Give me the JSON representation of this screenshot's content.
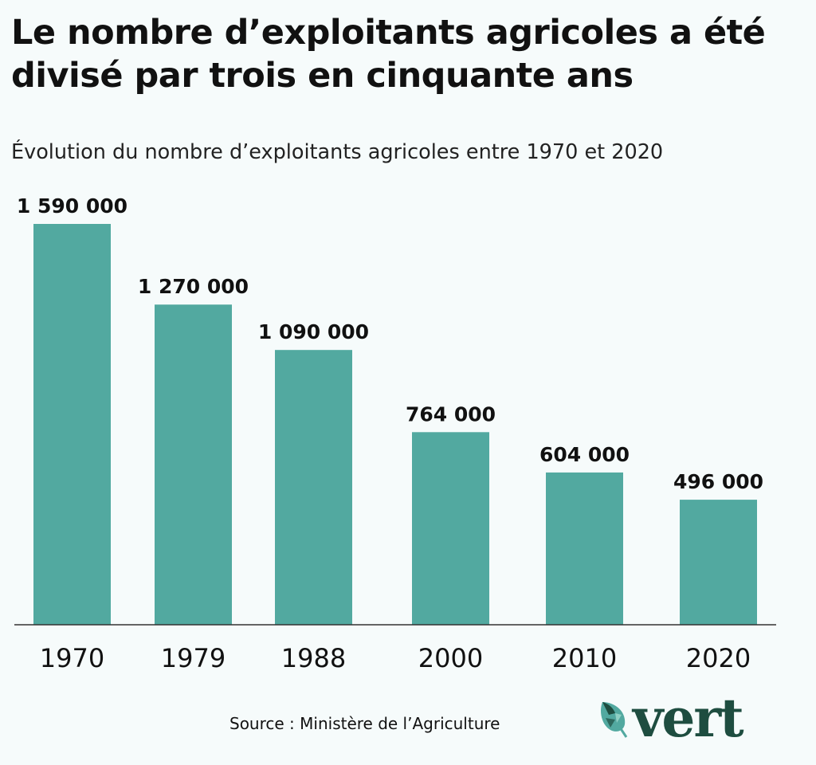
{
  "title": "Le nombre d’exploitants agricoles a été divisé par trois en cinquante ans",
  "subtitle": "Évolution du nombre d’exploitants agricoles entre 1970 et 2020",
  "source": "Source : Ministère de l’Agriculture",
  "logo": {
    "text": "vert",
    "icon": "leaf-icon"
  },
  "colors": {
    "bar": "#52a9a0",
    "background": "#f6fbfb",
    "logo": "#1e4d40"
  },
  "chart_data": {
    "type": "bar",
    "categories": [
      "1970",
      "1979",
      "1988",
      "2000",
      "2010",
      "2020"
    ],
    "values": [
      1590000,
      1270000,
      1090000,
      764000,
      604000,
      496000
    ],
    "data_labels": [
      "1 590 000",
      "1 270 000",
      "1 090 000",
      "764 000",
      "604 000",
      "496 000"
    ],
    "title": "Évolution du nombre d’exploitants agricoles entre 1970 et 2020",
    "xlabel": "",
    "ylabel": "",
    "ylim": [
      0,
      1590000
    ],
    "grid": false
  }
}
